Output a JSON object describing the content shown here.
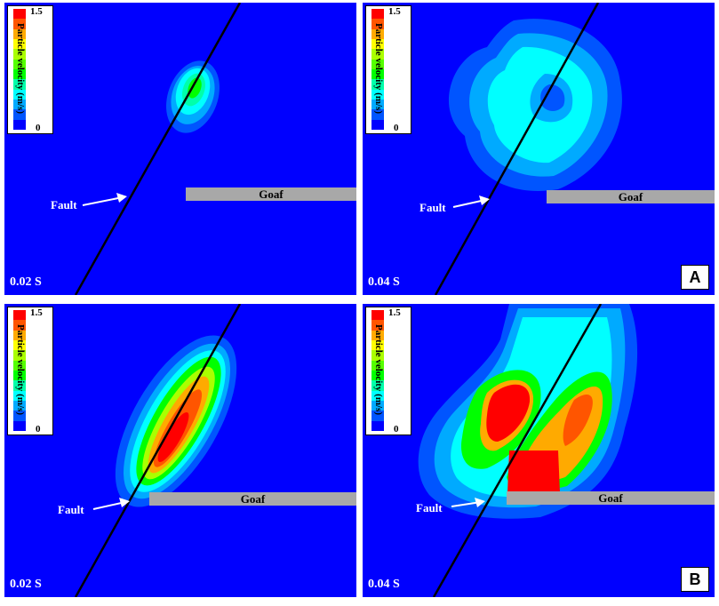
{
  "legend": {
    "title": "Particle velocity (m/s)",
    "max": "1.5",
    "min": "0",
    "colors": [
      "#ff0000",
      "#ff5500",
      "#ffaa00",
      "#ffff00",
      "#aaff00",
      "#55ff00",
      "#00ff00",
      "#00ffaa",
      "#00ffff",
      "#00aaff",
      "#0055ff",
      "#0000ff"
    ]
  },
  "labels": {
    "fault": "Fault",
    "goaf": "Goaf"
  },
  "row_tags": {
    "row1": "A",
    "row2": "B"
  },
  "panels": {
    "p1": {
      "time": "0.02 S"
    },
    "p2": {
      "time": "0.04 S"
    },
    "p3": {
      "time": "0.02 S"
    },
    "p4": {
      "time": "0.04 S"
    }
  }
}
